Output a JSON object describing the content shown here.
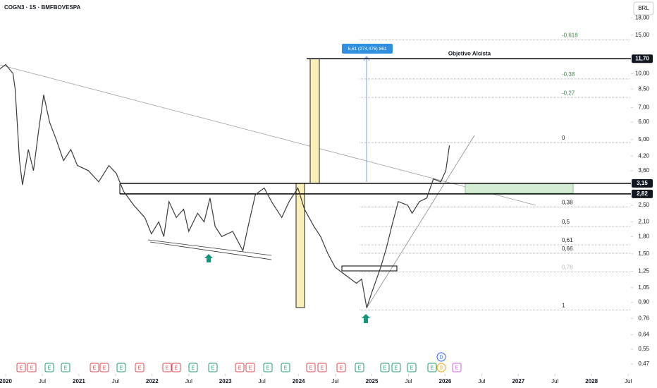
{
  "chart_data": {
    "type": "line",
    "title": "COGN3 · 1S · BMFBOVESPA",
    "currency": "BRL",
    "log_scale": true,
    "x": [
      2019.92,
      2020.0,
      2020.1,
      2020.13,
      2020.19,
      2020.23,
      2020.31,
      2020.38,
      2020.45,
      2020.52,
      2020.6,
      2020.69,
      2020.79,
      2020.89,
      2020.98,
      2021.13,
      2021.27,
      2021.41,
      2021.51,
      2021.61,
      2021.75,
      2021.9,
      2021.99,
      2022.09,
      2022.16,
      2022.23,
      2022.33,
      2022.43,
      2022.5,
      2022.62,
      2022.71,
      2022.79,
      2022.86,
      2022.95,
      2023.1,
      2023.24,
      2023.31,
      2023.41,
      2023.53,
      2023.63,
      2023.77,
      2023.87,
      2023.99,
      2024.08,
      2024.21,
      2024.3,
      2024.4,
      2024.5,
      2024.64,
      2024.79,
      2024.86,
      2024.93,
      2025.0,
      2025.12,
      2025.2,
      2025.27,
      2025.36,
      2025.49,
      2025.55,
      2025.65,
      2025.75,
      2025.84,
      2025.94,
      2026.01,
      2026.06
    ],
    "series": [
      {
        "name": "COGN3",
        "color": "#3a3a3a",
        "values": [
          10.5,
          11,
          10,
          8.5,
          4,
          3.1,
          4.5,
          3.6,
          5.5,
          8,
          6,
          5,
          4,
          4.5,
          3.8,
          3.6,
          3.2,
          3.8,
          3.5,
          2.9,
          2.5,
          2.2,
          1.85,
          2.1,
          1.8,
          2.6,
          2.2,
          2.4,
          1.9,
          2.3,
          2.1,
          2.7,
          2.0,
          1.8,
          1.9,
          1.55,
          2.0,
          2.8,
          3.0,
          2.6,
          2.2,
          2.6,
          3.0,
          2.4,
          2.0,
          1.8,
          1.5,
          1.3,
          1.2,
          1.1,
          1.15,
          0.85,
          1.0,
          1.3,
          1.6,
          2.0,
          2.6,
          2.5,
          2.3,
          2.6,
          2.7,
          3.3,
          3.2,
          3.6,
          4.7
        ]
      }
    ],
    "xlim": [
      2019.923,
      2028.537
    ],
    "xticks": [
      {
        "value": 2020,
        "label": "2020"
      },
      {
        "value": 2020.5,
        "label": "Jul"
      },
      {
        "value": 2021,
        "label": "2021"
      },
      {
        "value": 2021.5,
        "label": "Jul"
      },
      {
        "value": 2022,
        "label": "2022"
      },
      {
        "value": 2022.5,
        "label": "Jul"
      },
      {
        "value": 2023,
        "label": "2023"
      },
      {
        "value": 2023.5,
        "label": "Jul"
      },
      {
        "value": 2024,
        "label": "2024"
      },
      {
        "value": 2024.5,
        "label": "Jul"
      },
      {
        "value": 2025,
        "label": "2025"
      },
      {
        "value": 2025.5,
        "label": "Jul"
      },
      {
        "value": 2026,
        "label": "2026"
      },
      {
        "value": 2026.5,
        "label": "Jul"
      },
      {
        "value": 2027,
        "label": "2027"
      },
      {
        "value": 2027.5,
        "label": "Jul"
      },
      {
        "value": 2028,
        "label": "2028"
      },
      {
        "value": 2028.5,
        "label": "Jul"
      }
    ],
    "ylim": [
      0.424,
      21.7
    ],
    "yticks": [
      {
        "value": 18,
        "label": "18,00"
      },
      {
        "value": 15,
        "label": "15,00"
      },
      {
        "value": 10,
        "label": "10,00"
      },
      {
        "value": 8.5,
        "label": "8,50"
      },
      {
        "value": 7,
        "label": "7,00"
      },
      {
        "value": 6,
        "label": "6,00"
      },
      {
        "value": 5,
        "label": "5,00"
      },
      {
        "value": 4.2,
        "label": "4,20"
      },
      {
        "value": 3.6,
        "label": "3,60"
      },
      {
        "value": 2.5,
        "label": "2,50"
      },
      {
        "value": 2.1,
        "label": "2,10"
      },
      {
        "value": 1.8,
        "label": "1,80"
      },
      {
        "value": 1.5,
        "label": "1,50"
      },
      {
        "value": 1.25,
        "label": "1,25"
      },
      {
        "value": 1.05,
        "label": "1,05"
      },
      {
        "value": 0.9,
        "label": "0,90"
      },
      {
        "value": 0.76,
        "label": "0,76"
      },
      {
        "value": 0.64,
        "label": "0,64"
      },
      {
        "value": 0.55,
        "label": "0,55"
      },
      {
        "value": 0.47,
        "label": "0,47"
      }
    ],
    "levels": [
      {
        "value": 11.7,
        "label": "11,70"
      },
      {
        "value": 3.15,
        "label": "3,15"
      },
      {
        "value": 2.82,
        "label": "2,82"
      }
    ],
    "target_label": "Objetivo Alcista",
    "measure_label": "8,61 (274,476) 861",
    "fib_levels": [
      {
        "label": "-0,618",
        "price": 14.3
      },
      {
        "label": "-0,38",
        "price": 9.45
      },
      {
        "label": "-0,27",
        "price": 7.78
      },
      {
        "label": "0",
        "price": 4.84
      },
      {
        "label": "0,38",
        "price": 2.46
      },
      {
        "label": "0,5",
        "price": 2.0
      },
      {
        "label": "0,61",
        "price": 1.65
      },
      {
        "label": "0,66",
        "price": 1.51
      },
      {
        "label": "0,78",
        "price": 1.24
      },
      {
        "label": "1",
        "price": 0.83
      }
    ],
    "events": [
      "E",
      "E",
      "E",
      "E",
      "E",
      "E",
      "E",
      "E",
      "E",
      "E",
      "E",
      "E",
      "E",
      "E",
      "E",
      "E",
      "E",
      "E",
      "E",
      "E",
      "E",
      "E",
      "E",
      "E",
      "D",
      "S",
      "E"
    ]
  }
}
